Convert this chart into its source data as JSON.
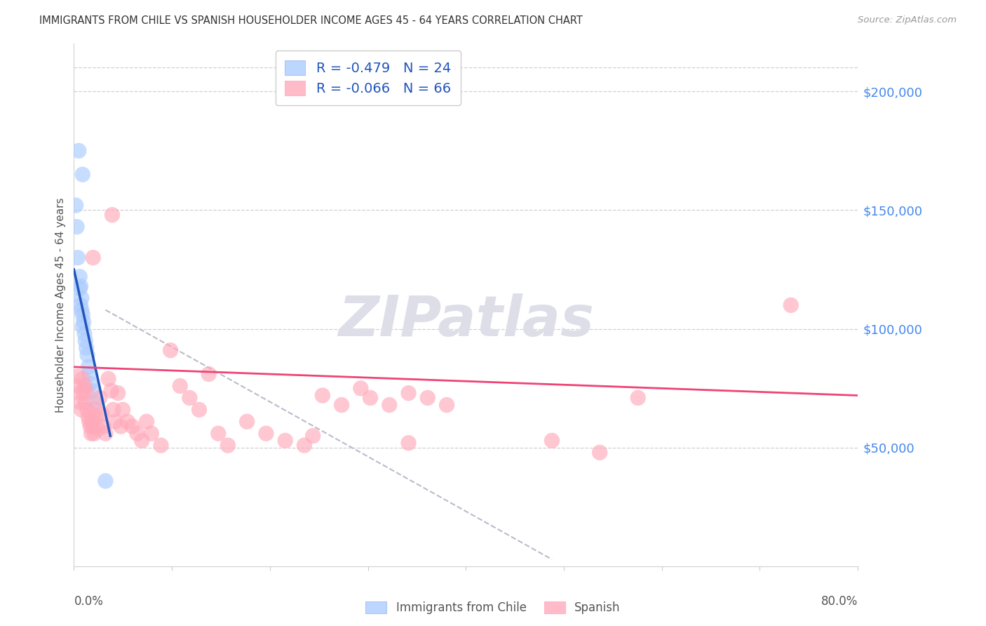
{
  "title": "IMMIGRANTS FROM CHILE VS SPANISH HOUSEHOLDER INCOME AGES 45 - 64 YEARS CORRELATION CHART",
  "source": "Source: ZipAtlas.com",
  "ylabel": "Householder Income Ages 45 - 64 years",
  "legend_blue_label": "R = -0.479   N = 24",
  "legend_pink_label": "R = -0.066   N = 66",
  "legend_label_blue": "Immigrants from Chile",
  "legend_label_pink": "Spanish",
  "watermark": "ZIPatlas",
  "background_color": "#ffffff",
  "blue_color": "#aaccff",
  "pink_color": "#ffaabb",
  "blue_line_color": "#2255bb",
  "pink_line_color": "#ee4477",
  "right_axis_color": "#4488ee",
  "xlim": [
    0.0,
    0.82
  ],
  "ylim": [
    0,
    220000
  ],
  "right_yticks_labels": [
    "$200,000",
    "$150,000",
    "$100,000",
    "$50,000"
  ],
  "right_yticks_values": [
    200000,
    150000,
    100000,
    50000
  ],
  "top_gridline_y": 210000,
  "blue_points": [
    [
      0.002,
      152000
    ],
    [
      0.003,
      143000
    ],
    [
      0.004,
      130000
    ],
    [
      0.005,
      175000
    ],
    [
      0.006,
      122000
    ],
    [
      0.006,
      117000
    ],
    [
      0.007,
      118000
    ],
    [
      0.007,
      110000
    ],
    [
      0.008,
      113000
    ],
    [
      0.008,
      108000
    ],
    [
      0.009,
      106000
    ],
    [
      0.009,
      101000
    ],
    [
      0.01,
      103000
    ],
    [
      0.011,
      98000
    ],
    [
      0.012,
      95000
    ],
    [
      0.013,
      92000
    ],
    [
      0.014,
      89000
    ],
    [
      0.015,
      84000
    ],
    [
      0.016,
      81000
    ],
    [
      0.017,
      77000
    ],
    [
      0.019,
      74000
    ],
    [
      0.022,
      69000
    ],
    [
      0.033,
      36000
    ],
    [
      0.009,
      165000
    ]
  ],
  "pink_points": [
    [
      0.004,
      80000
    ],
    [
      0.005,
      76000
    ],
    [
      0.006,
      73000
    ],
    [
      0.007,
      69000
    ],
    [
      0.008,
      66000
    ],
    [
      0.009,
      79000
    ],
    [
      0.01,
      73000
    ],
    [
      0.011,
      76000
    ],
    [
      0.012,
      69000
    ],
    [
      0.013,
      74000
    ],
    [
      0.014,
      66000
    ],
    [
      0.015,
      63000
    ],
    [
      0.016,
      61000
    ],
    [
      0.017,
      59000
    ],
    [
      0.018,
      56000
    ],
    [
      0.019,
      61000
    ],
    [
      0.02,
      59000
    ],
    [
      0.021,
      56000
    ],
    [
      0.022,
      66000
    ],
    [
      0.023,
      63000
    ],
    [
      0.025,
      58000
    ],
    [
      0.027,
      71000
    ],
    [
      0.029,
      64000
    ],
    [
      0.031,
      59000
    ],
    [
      0.033,
      56000
    ],
    [
      0.036,
      79000
    ],
    [
      0.039,
      74000
    ],
    [
      0.041,
      66000
    ],
    [
      0.043,
      61000
    ],
    [
      0.046,
      73000
    ],
    [
      0.049,
      59000
    ],
    [
      0.051,
      66000
    ],
    [
      0.056,
      61000
    ],
    [
      0.061,
      59000
    ],
    [
      0.066,
      56000
    ],
    [
      0.071,
      53000
    ],
    [
      0.076,
      61000
    ],
    [
      0.081,
      56000
    ],
    [
      0.091,
      51000
    ],
    [
      0.101,
      91000
    ],
    [
      0.111,
      76000
    ],
    [
      0.121,
      71000
    ],
    [
      0.131,
      66000
    ],
    [
      0.141,
      81000
    ],
    [
      0.151,
      56000
    ],
    [
      0.161,
      51000
    ],
    [
      0.181,
      61000
    ],
    [
      0.201,
      56000
    ],
    [
      0.221,
      53000
    ],
    [
      0.241,
      51000
    ],
    [
      0.04,
      148000
    ],
    [
      0.02,
      130000
    ],
    [
      0.26,
      72000
    ],
    [
      0.28,
      68000
    ],
    [
      0.3,
      75000
    ],
    [
      0.31,
      71000
    ],
    [
      0.33,
      68000
    ],
    [
      0.35,
      73000
    ],
    [
      0.37,
      71000
    ],
    [
      0.39,
      68000
    ],
    [
      0.25,
      55000
    ],
    [
      0.35,
      52000
    ],
    [
      0.5,
      53000
    ],
    [
      0.55,
      48000
    ],
    [
      0.59,
      71000
    ],
    [
      0.75,
      110000
    ]
  ],
  "blue_trend": [
    0.0,
    125000,
    0.038,
    55000
  ],
  "pink_trend": [
    0.0,
    84000,
    0.82,
    72000
  ],
  "dash_line": [
    0.033,
    108000,
    0.5,
    3000
  ]
}
